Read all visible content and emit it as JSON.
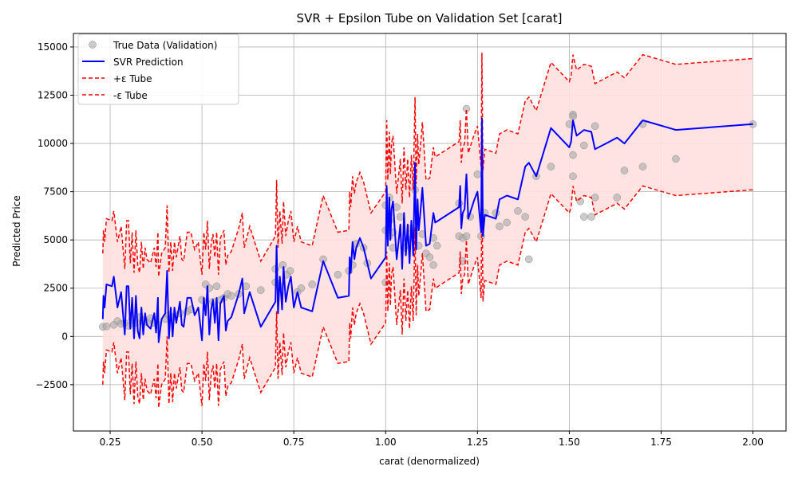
{
  "chart_data": {
    "type": "scatter",
    "title": "SVR + Epsilon Tube on Validation Set [carat]",
    "xlabel": "carat (denormalized)",
    "ylabel": "Predicted Price",
    "xlim": [
      0.15,
      2.09
    ],
    "ylim": [
      -4900,
      15700
    ],
    "x_ticks": [
      0.25,
      0.5,
      0.75,
      1.0,
      1.25,
      1.5,
      1.75,
      2.0
    ],
    "x_tick_labels": [
      "0.25",
      "0.50",
      "0.75",
      "1.00",
      "1.25",
      "1.50",
      "1.75",
      "2.00"
    ],
    "y_ticks": [
      -2500,
      0,
      2500,
      5000,
      7500,
      10000,
      12500,
      15000
    ],
    "y_tick_labels": [
      "−2500",
      "0",
      "2500",
      "5000",
      "7500",
      "10000",
      "12500",
      "15000"
    ],
    "grid": true,
    "legend_position": "top-left",
    "epsilon": 3400,
    "colors": {
      "scatter": "#a8a8a8",
      "prediction": "#0000ff",
      "tube": "#ff0000",
      "tube_fill": "#ffe0e0"
    },
    "series": [
      {
        "name": "True Data (Validation)",
        "kind": "scatter",
        "points": [
          [
            0.23,
            500
          ],
          [
            0.24,
            520
          ],
          [
            0.26,
            600
          ],
          [
            0.27,
            800
          ],
          [
            0.28,
            650
          ],
          [
            0.29,
            700
          ],
          [
            0.3,
            550
          ],
          [
            0.31,
            900
          ],
          [
            0.32,
            700
          ],
          [
            0.33,
            1000
          ],
          [
            0.34,
            800
          ],
          [
            0.35,
            750
          ],
          [
            0.36,
            950
          ],
          [
            0.37,
            700
          ],
          [
            0.38,
            600
          ],
          [
            0.4,
            900
          ],
          [
            0.41,
            1100
          ],
          [
            0.42,
            1000
          ],
          [
            0.44,
            1200
          ],
          [
            0.46,
            1300
          ],
          [
            0.47,
            1400
          ],
          [
            0.5,
            1900
          ],
          [
            0.51,
            2700
          ],
          [
            0.52,
            2500
          ],
          [
            0.53,
            1800
          ],
          [
            0.54,
            2600
          ],
          [
            0.55,
            1900
          ],
          [
            0.56,
            2000
          ],
          [
            0.57,
            2200
          ],
          [
            0.58,
            2100
          ],
          [
            0.6,
            2200
          ],
          [
            0.62,
            2600
          ],
          [
            0.66,
            2400
          ],
          [
            0.7,
            2800
          ],
          [
            0.7,
            3500
          ],
          [
            0.71,
            2600
          ],
          [
            0.72,
            3700
          ],
          [
            0.73,
            3200
          ],
          [
            0.74,
            3400
          ],
          [
            0.76,
            2300
          ],
          [
            0.77,
            2500
          ],
          [
            0.8,
            2700
          ],
          [
            0.83,
            4000
          ],
          [
            0.87,
            3200
          ],
          [
            0.9,
            3400
          ],
          [
            0.91,
            3700
          ],
          [
            0.92,
            4800
          ],
          [
            0.94,
            4600
          ],
          [
            0.95,
            3800
          ],
          [
            1.0,
            2800
          ],
          [
            1.0,
            5500
          ],
          [
            1.0,
            6800
          ],
          [
            1.01,
            7200
          ],
          [
            1.01,
            6000
          ],
          [
            1.01,
            5200
          ],
          [
            1.02,
            5400
          ],
          [
            1.02,
            4600
          ],
          [
            1.03,
            6700
          ],
          [
            1.04,
            6200
          ],
          [
            1.05,
            4600
          ],
          [
            1.06,
            5000
          ],
          [
            1.07,
            5600
          ],
          [
            1.08,
            7600
          ],
          [
            1.09,
            4700
          ],
          [
            1.1,
            5300
          ],
          [
            1.11,
            4300
          ],
          [
            1.12,
            4100
          ],
          [
            1.13,
            5100
          ],
          [
            1.13,
            3700
          ],
          [
            1.14,
            4700
          ],
          [
            1.2,
            5200
          ],
          [
            1.2,
            6900
          ],
          [
            1.21,
            3900
          ],
          [
            1.21,
            5100
          ],
          [
            1.22,
            11800
          ],
          [
            1.22,
            5200
          ],
          [
            1.23,
            6200
          ],
          [
            1.25,
            8400
          ],
          [
            1.26,
            5200
          ],
          [
            1.27,
            6400
          ],
          [
            1.3,
            6400
          ],
          [
            1.31,
            5700
          ],
          [
            1.33,
            5900
          ],
          [
            1.36,
            6500
          ],
          [
            1.38,
            6200
          ],
          [
            1.39,
            4000
          ],
          [
            1.41,
            8300
          ],
          [
            1.45,
            8800
          ],
          [
            1.5,
            11000
          ],
          [
            1.51,
            11500
          ],
          [
            1.51,
            11400
          ],
          [
            1.51,
            9400
          ],
          [
            1.51,
            8300
          ],
          [
            1.53,
            7000
          ],
          [
            1.54,
            9900
          ],
          [
            1.54,
            6200
          ],
          [
            1.56,
            6200
          ],
          [
            1.57,
            10900
          ],
          [
            1.57,
            7200
          ],
          [
            1.63,
            7200
          ],
          [
            1.65,
            8600
          ],
          [
            1.7,
            8800
          ],
          [
            1.7,
            11000
          ],
          [
            1.79,
            9200
          ],
          [
            2.0,
            11000
          ]
        ]
      },
      {
        "name": "SVR Prediction",
        "kind": "line",
        "points": [
          [
            0.23,
            900
          ],
          [
            0.232,
            2100
          ],
          [
            0.235,
            1500
          ],
          [
            0.24,
            2700
          ],
          [
            0.255,
            2600
          ],
          [
            0.26,
            3100
          ],
          [
            0.27,
            1500
          ],
          [
            0.28,
            2300
          ],
          [
            0.29,
            100
          ],
          [
            0.295,
            2600
          ],
          [
            0.3,
            2600
          ],
          [
            0.305,
            400
          ],
          [
            0.31,
            2000
          ],
          [
            0.315,
            -100
          ],
          [
            0.32,
            2100
          ],
          [
            0.325,
            300
          ],
          [
            0.33,
            -100
          ],
          [
            0.335,
            1500
          ],
          [
            0.34,
            100
          ],
          [
            0.345,
            1200
          ],
          [
            0.35,
            600
          ],
          [
            0.36,
            400
          ],
          [
            0.37,
            1200
          ],
          [
            0.375,
            200
          ],
          [
            0.38,
            2000
          ],
          [
            0.382,
            -300
          ],
          [
            0.39,
            900
          ],
          [
            0.4,
            1200
          ],
          [
            0.405,
            3400
          ],
          [
            0.41,
            -100
          ],
          [
            0.415,
            1500
          ],
          [
            0.42,
            0
          ],
          [
            0.425,
            1500
          ],
          [
            0.43,
            700
          ],
          [
            0.44,
            1800
          ],
          [
            0.445,
            600
          ],
          [
            0.45,
            500
          ],
          [
            0.46,
            2000
          ],
          [
            0.47,
            2000
          ],
          [
            0.48,
            1100
          ],
          [
            0.49,
            1500
          ],
          [
            0.5,
            -200
          ],
          [
            0.505,
            2000
          ],
          [
            0.51,
            1100
          ],
          [
            0.515,
            2600
          ],
          [
            0.52,
            100
          ],
          [
            0.525,
            1400
          ],
          [
            0.53,
            1900
          ],
          [
            0.535,
            700
          ],
          [
            0.54,
            2000
          ],
          [
            0.545,
            -200
          ],
          [
            0.55,
            1700
          ],
          [
            0.56,
            2100
          ],
          [
            0.565,
            300
          ],
          [
            0.57,
            800
          ],
          [
            0.58,
            1000
          ],
          [
            0.6,
            2200
          ],
          [
            0.61,
            3000
          ],
          [
            0.615,
            1200
          ],
          [
            0.63,
            2300
          ],
          [
            0.66,
            500
          ],
          [
            0.7,
            1800
          ],
          [
            0.703,
            4700
          ],
          [
            0.707,
            1200
          ],
          [
            0.712,
            3100
          ],
          [
            0.718,
            1400
          ],
          [
            0.722,
            3600
          ],
          [
            0.728,
            1800
          ],
          [
            0.735,
            2600
          ],
          [
            0.742,
            3100
          ],
          [
            0.75,
            1500
          ],
          [
            0.76,
            2300
          ],
          [
            0.77,
            1500
          ],
          [
            0.8,
            1300
          ],
          [
            0.83,
            3900
          ],
          [
            0.87,
            2000
          ],
          [
            0.9,
            2100
          ],
          [
            0.902,
            4100
          ],
          [
            0.905,
            3300
          ],
          [
            0.91,
            4900
          ],
          [
            0.915,
            4000
          ],
          [
            0.92,
            4600
          ],
          [
            0.93,
            5100
          ],
          [
            0.94,
            4600
          ],
          [
            0.96,
            3000
          ],
          [
            1.0,
            4100
          ],
          [
            1.003,
            7800
          ],
          [
            1.006,
            4700
          ],
          [
            1.01,
            7200
          ],
          [
            1.013,
            5000
          ],
          [
            1.016,
            6600
          ],
          [
            1.02,
            7000
          ],
          [
            1.03,
            4000
          ],
          [
            1.04,
            5800
          ],
          [
            1.045,
            3500
          ],
          [
            1.05,
            6400
          ],
          [
            1.055,
            4200
          ],
          [
            1.06,
            5800
          ],
          [
            1.065,
            3800
          ],
          [
            1.07,
            6000
          ],
          [
            1.075,
            4200
          ],
          [
            1.08,
            9000
          ],
          [
            1.083,
            4500
          ],
          [
            1.087,
            7100
          ],
          [
            1.09,
            5500
          ],
          [
            1.095,
            6500
          ],
          [
            1.1,
            7700
          ],
          [
            1.105,
            6200
          ],
          [
            1.11,
            4700
          ],
          [
            1.12,
            4800
          ],
          [
            1.13,
            6400
          ],
          [
            1.135,
            5900
          ],
          [
            1.2,
            6700
          ],
          [
            1.203,
            7800
          ],
          [
            1.206,
            5600
          ],
          [
            1.21,
            6400
          ],
          [
            1.215,
            6600
          ],
          [
            1.22,
            8400
          ],
          [
            1.225,
            6100
          ],
          [
            1.24,
            7000
          ],
          [
            1.25,
            7500
          ],
          [
            1.26,
            5400
          ],
          [
            1.262,
            11300
          ],
          [
            1.265,
            5200
          ],
          [
            1.27,
            6300
          ],
          [
            1.3,
            6100
          ],
          [
            1.31,
            7100
          ],
          [
            1.33,
            7300
          ],
          [
            1.36,
            7100
          ],
          [
            1.38,
            8800
          ],
          [
            1.39,
            9000
          ],
          [
            1.41,
            8300
          ],
          [
            1.45,
            10800
          ],
          [
            1.5,
            9800
          ],
          [
            1.505,
            10100
          ],
          [
            1.51,
            11200
          ],
          [
            1.52,
            10400
          ],
          [
            1.54,
            10700
          ],
          [
            1.56,
            10600
          ],
          [
            1.57,
            9700
          ],
          [
            1.63,
            10300
          ],
          [
            1.65,
            10000
          ],
          [
            1.7,
            11200
          ],
          [
            1.79,
            10700
          ],
          [
            2.0,
            11000
          ]
        ]
      },
      {
        "name": "+ε Tube",
        "kind": "line-dashed"
      },
      {
        "name": "-ε Tube",
        "kind": "line-dashed"
      }
    ]
  }
}
